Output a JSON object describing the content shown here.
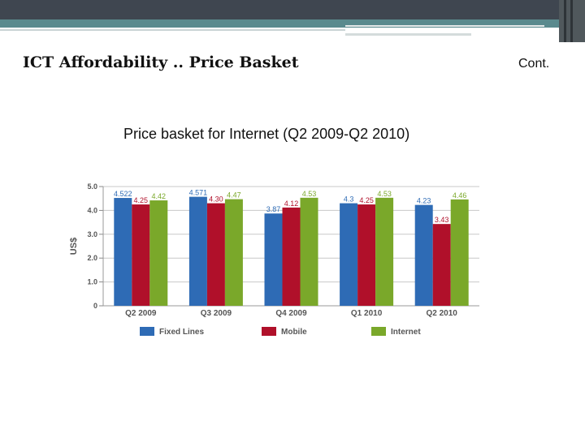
{
  "slide": {
    "title": "ICT Affordability .. Price Basket",
    "cont_label": "Cont.",
    "chart_heading": "Price basket for Internet (Q2 2009-Q2 2010)"
  },
  "colors": {
    "header_dark": "#3f4650",
    "header_teal": "#5a8a8e",
    "fixed_lines": "#2e6bb5",
    "mobile": "#b0102a",
    "internet": "#7aa82a",
    "axis_text": "#555555"
  },
  "chart_data": {
    "type": "bar",
    "categories": [
      "Q2 2009",
      "Q3 2009",
      "Q4 2009",
      "Q1 2010",
      "Q2 2010"
    ],
    "series": [
      {
        "name": "Fixed Lines",
        "values": [
          4.522,
          4.571,
          3.87,
          4.3,
          4.23
        ],
        "labels": [
          "4.522",
          "4.571",
          "3.87",
          "4.3",
          "4.23"
        ],
        "color": "#2e6bb5"
      },
      {
        "name": "Mobile",
        "values": [
          4.25,
          4.3,
          4.12,
          4.25,
          3.43
        ],
        "labels": [
          "4.25",
          "4.30",
          "4.12",
          "4.25",
          "3.43"
        ],
        "color": "#b0102a"
      },
      {
        "name": "Internet",
        "values": [
          4.42,
          4.47,
          4.53,
          4.53,
          4.46
        ],
        "labels": [
          "4.42",
          "4.47",
          "4.53",
          "4.53",
          "4.46"
        ],
        "color": "#7aa82a"
      }
    ],
    "ylabel": "US$",
    "ylim": [
      0,
      5
    ],
    "yticks": [
      "0",
      "1.0",
      "2.0",
      "3.0",
      "4.0",
      "5.0"
    ],
    "grid": true,
    "legend_position": "bottom"
  }
}
